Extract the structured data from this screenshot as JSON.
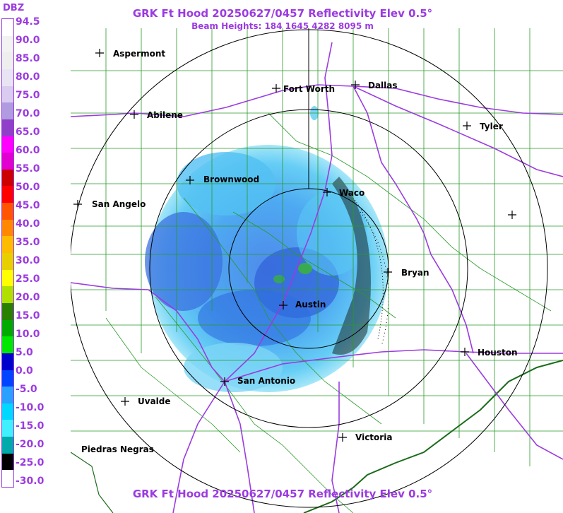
{
  "header": {
    "title": "GRK Ft Hood 20250627/0457 Reflectivity Elev 0.5°",
    "subtitle": "Beam Heights: 184 1645 4282 8095 m",
    "footer_title": "GRK Ft Hood 20250627/0457 Reflectivity Elev 0.5°"
  },
  "legend": {
    "unit": "DBZ",
    "labels": [
      "94.5",
      "90.0",
      "85.0",
      "80.0",
      "75.0",
      "70.0",
      "65.0",
      "60.0",
      "55.0",
      "50.0",
      "45.0",
      "40.0",
      "35.0",
      "30.0",
      "25.0",
      "20.0",
      "15.0",
      "10.0",
      "5.0",
      "0.0",
      "-5.0",
      "-10.0",
      "-15.0",
      "-20.0",
      "-25.0",
      "-30.0"
    ],
    "colors": [
      "#ffffff",
      "#f2f2f2",
      "#eeeeee",
      "#e8e4f4",
      "#d9ccf0",
      "#b09ae0",
      "#9040c8",
      "#ff00ff",
      "#e000d0",
      "#cc0000",
      "#ff0000",
      "#ff5500",
      "#ff8800",
      "#ffbb00",
      "#e8d000",
      "#ffff00",
      "#b0e000",
      "#2a8000",
      "#00aa00",
      "#00e800",
      "#0000cc",
      "#0044ff",
      "#2aa0ff",
      "#00d8ff",
      "#40f0ff",
      "#00aaaa",
      "#000000",
      "#ffffff"
    ]
  },
  "cities": [
    {
      "name": "Aspermont"
    },
    {
      "name": "Fort Worth"
    },
    {
      "name": "Dallas"
    },
    {
      "name": "Abilene"
    },
    {
      "name": "Tyler"
    },
    {
      "name": "Brownwood"
    },
    {
      "name": "Waco"
    },
    {
      "name": "San Angelo"
    },
    {
      "name": "Bryan"
    },
    {
      "name": "Austin"
    },
    {
      "name": "Houston"
    },
    {
      "name": "San Antonio"
    },
    {
      "name": "Uvalde"
    },
    {
      "name": "Victoria"
    },
    {
      "name": "Piedras Negras"
    },
    {
      "name": ""
    }
  ],
  "colors": {
    "title": "#9b3be0",
    "county_lines": "#2a9a2a",
    "highways": "#9b3be0",
    "range_rings": "#000000"
  }
}
